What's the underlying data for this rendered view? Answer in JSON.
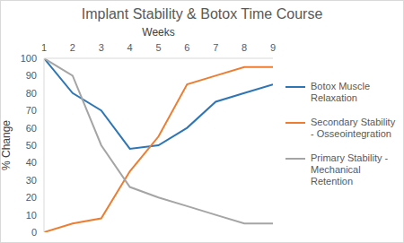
{
  "chart_data": {
    "type": "line",
    "title": "Implant Stability & Botox Time Course",
    "x_label": "Weeks",
    "y_label": "% Change",
    "x": [
      1,
      2,
      3,
      4,
      5,
      6,
      7,
      8,
      9
    ],
    "xlim": [
      1,
      9
    ],
    "xticks": [
      1,
      2,
      3,
      4,
      5,
      6,
      7,
      8,
      9
    ],
    "ylim": [
      0,
      100
    ],
    "yticks": [
      0,
      10,
      20,
      30,
      40,
      50,
      60,
      70,
      80,
      90,
      100
    ],
    "grid": false,
    "legend": "right",
    "marker": "none",
    "series": [
      {
        "name": "Botox Muscle Relaxation",
        "color": "#2e75b6",
        "values": [
          100,
          80,
          70,
          48,
          50,
          60,
          75,
          80,
          85
        ]
      },
      {
        "name": "Secondary Stability - Osseointegration",
        "color": "#ed7d31",
        "values": [
          0,
          5,
          8,
          35,
          55,
          85,
          90,
          95,
          95
        ]
      },
      {
        "name": "Primary Stability - Mechanical Retention",
        "color": "#a5a5a5",
        "values": [
          100,
          90,
          50,
          26,
          20,
          15,
          10,
          5,
          5
        ]
      }
    ]
  }
}
